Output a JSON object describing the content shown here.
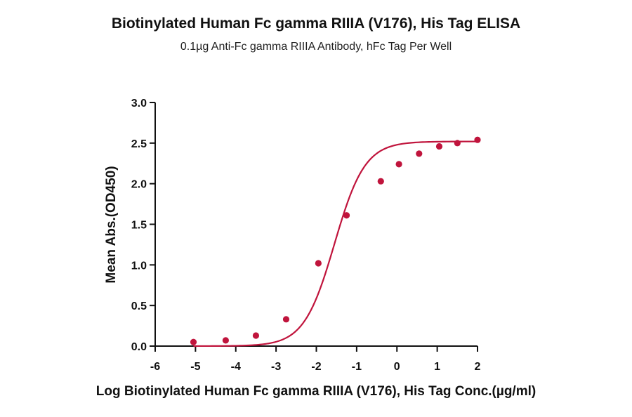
{
  "chart_data": {
    "type": "scatter",
    "title": "Biotinylated Human Fc gamma RIIIA (V176), His Tag ELISA",
    "subtitle": "0.1µg Anti-Fc gamma RIIIA Antibody, hFc Tag Per Well",
    "xlabel": "Log Biotinylated Human Fc gamma RIIIA (V176), His Tag Conc.(µg/ml)",
    "ylabel": "Mean Abs.(OD450)",
    "xlim": [
      -6,
      2
    ],
    "ylim": [
      0,
      3.0
    ],
    "x_ticks": [
      "-6",
      "-5",
      "-4",
      "-3",
      "-2",
      "-1",
      "0",
      "1",
      "2"
    ],
    "y_ticks": [
      "0.0",
      "0.5",
      "1.0",
      "1.5",
      "2.0",
      "2.5",
      "3.0"
    ],
    "grid": false,
    "color": "#c0143c",
    "series": [
      {
        "x": [
          -5.05,
          -4.25,
          -3.5,
          -2.75,
          -1.95,
          -1.25,
          -0.4,
          0.05,
          0.55,
          1.05,
          1.5,
          2.0
        ],
        "y": [
          0.05,
          0.07,
          0.13,
          0.33,
          1.02,
          1.61,
          2.03,
          2.24,
          2.37,
          2.46,
          2.5,
          2.54
        ]
      }
    ],
    "fit": {
      "type": "4PL",
      "bottom": 0.0,
      "top": 2.52,
      "log_ec50": -1.55,
      "hill": 1.15,
      "x_range": [
        -5.05,
        2.0
      ]
    }
  }
}
